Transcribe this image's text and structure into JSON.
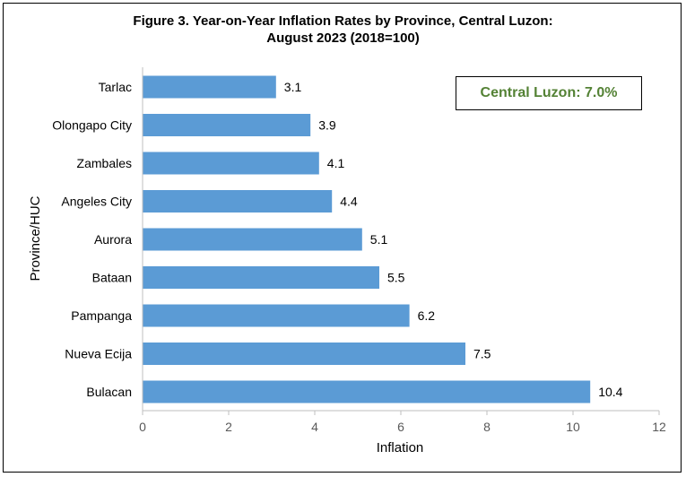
{
  "title_line1": "Figure 3. Year-on-Year Inflation Rates by Province, Central Luzon:",
  "title_line2": "August 2023 (2018=100)",
  "callout": "Central Luzon: 7.0%",
  "colors": {
    "bar": "#5B9BD5",
    "callout_text": "#548235"
  },
  "chart_data": {
    "type": "bar",
    "orientation": "horizontal",
    "title": "Figure 3. Year-on-Year Inflation Rates by Province, Central Luzon: August 2023 (2018=100)",
    "xlabel": "Inflation",
    "ylabel": "Province/HUC",
    "categories": [
      "Tarlac",
      "Olongapo City",
      "Zambales",
      "Angeles City",
      "Aurora",
      "Bataan",
      "Pampanga",
      "Nueva Ecija",
      "Bulacan"
    ],
    "values": [
      3.1,
      3.9,
      4.1,
      4.4,
      5.1,
      5.5,
      6.2,
      7.5,
      10.4
    ],
    "value_labels": [
      "3.1",
      "3.9",
      "4.1",
      "4.4",
      "5.1",
      "5.5",
      "6.2",
      "7.5",
      "10.4"
    ],
    "xlim": [
      0,
      12
    ],
    "xticks": [
      "0",
      "2",
      "4",
      "6",
      "8",
      "10",
      "12"
    ],
    "grid": false,
    "legend": "none"
  }
}
